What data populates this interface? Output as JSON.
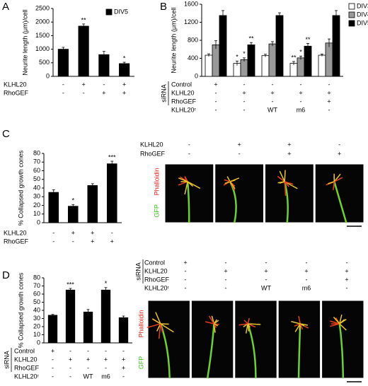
{
  "panels": [
    "A",
    "B",
    "C",
    "D"
  ],
  "chart_data": [
    {
      "type": "bar",
      "ylabel": "Neurite length (μm)/cell",
      "ylim": [
        0,
        2500
      ],
      "yticks": [
        0,
        500,
        1000,
        1500,
        2000,
        2500
      ],
      "series": [
        {
          "name": "DIV5",
          "color": "#000000",
          "values": [
            1000,
            1850,
            800,
            470
          ],
          "errors": [
            70,
            80,
            120,
            50
          ],
          "annotations": [
            null,
            "**",
            null,
            "*"
          ]
        }
      ],
      "conditions": [
        {
          "label": "KLHL20",
          "values": [
            "-",
            "+",
            "-",
            "+"
          ]
        },
        {
          "label": "RhoGEF",
          "values": [
            "-",
            "-",
            "+",
            "+"
          ]
        }
      ]
    },
    {
      "type": "bar",
      "ylabel": "Neurite length (μm)/cell",
      "ylim": [
        0,
        1600
      ],
      "yticks": [
        0,
        400,
        800,
        1200,
        1600
      ],
      "series": [
        {
          "name": "DIV3",
          "color": "#ffffff",
          "values": [
            470,
            290,
            460,
            290,
            470
          ],
          "errors": [
            30,
            50,
            30,
            40,
            25
          ],
          "annotations": [
            null,
            "*",
            null,
            "**",
            null
          ]
        },
        {
          "name": "DIV4",
          "color": "#999999",
          "values": [
            700,
            370,
            720,
            410,
            740
          ],
          "errors": [
            90,
            40,
            50,
            40,
            90
          ],
          "annotations": [
            null,
            "*",
            null,
            "*",
            null
          ]
        },
        {
          "name": "DIV5",
          "color": "#000000",
          "values": [
            1350,
            700,
            1350,
            670,
            1350
          ],
          "errors": [
            110,
            50,
            60,
            60,
            110
          ],
          "annotations": [
            null,
            "**",
            null,
            "**",
            null
          ]
        }
      ],
      "condition_group": "siRNA",
      "conditions": [
        {
          "label": "Control",
          "values": [
            "+",
            "-",
            "-",
            "-",
            "-"
          ]
        },
        {
          "label": "KLHL20",
          "values": [
            "-",
            "+",
            "+",
            "+",
            "+"
          ]
        },
        {
          "label": "RhoGEF",
          "values": [
            "-",
            "-",
            "-",
            "-",
            "+"
          ]
        },
        {
          "label": "KLHL20ʳ",
          "values": [
            "-",
            "-",
            "WT",
            "m6",
            "-"
          ]
        }
      ]
    },
    {
      "type": "bar",
      "ylabel": "% Collapsed growth cones",
      "ylim": [
        0,
        80
      ],
      "yticks": [
        0,
        10,
        20,
        30,
        40,
        50,
        60,
        70,
        80
      ],
      "series": [
        {
          "color": "#000000",
          "values": [
            35,
            19,
            43,
            68
          ],
          "errors": [
            3,
            2,
            2,
            3
          ],
          "annotations": [
            null,
            "*",
            null,
            "***"
          ]
        }
      ],
      "conditions": [
        {
          "label": "KLHL20",
          "values": [
            "-",
            "+",
            "+",
            "-"
          ]
        },
        {
          "label": "RhoGEF",
          "values": [
            "-",
            "-",
            "+",
            "+"
          ]
        }
      ]
    },
    {
      "type": "bar",
      "ylabel": "% Collapsed growth cones",
      "ylim": [
        0,
        80
      ],
      "yticks": [
        0,
        10,
        20,
        30,
        40,
        50,
        60,
        70,
        80
      ],
      "series": [
        {
          "color": "#000000",
          "values": [
            34,
            65,
            38,
            65,
            31
          ],
          "errors": [
            1,
            2,
            3,
            3,
            2
          ],
          "annotations": [
            null,
            "***",
            null,
            "*",
            null
          ]
        }
      ],
      "condition_group": "siRNA",
      "conditions": [
        {
          "label": "Control",
          "values": [
            "+",
            "-",
            "-",
            "-",
            "-"
          ]
        },
        {
          "label": "KLHL20",
          "values": [
            "-",
            "+",
            "+",
            "+",
            "+"
          ]
        },
        {
          "label": "RhoGEF",
          "values": [
            "-",
            "-",
            "-",
            "-",
            "+"
          ]
        },
        {
          "label": "KLHL20ʳ",
          "values": [
            "-",
            "-",
            "WT",
            "m6",
            "-"
          ]
        }
      ]
    }
  ],
  "micrographs": [
    {
      "channels": [
        "Phalloidin",
        "GFP"
      ],
      "conditions": [
        {
          "label": "KLHL20",
          "values": [
            "-",
            "+",
            "+",
            "-"
          ]
        },
        {
          "label": "RhoGEF",
          "values": [
            "-",
            "-",
            "+",
            "+"
          ]
        }
      ]
    },
    {
      "channels": [
        "Phalloidin",
        "GFP"
      ],
      "condition_group": "siRNA",
      "conditions": [
        {
          "label": "Control",
          "values": [
            "+",
            "-",
            "-",
            "-",
            "-"
          ]
        },
        {
          "label": "KLHL20",
          "values": [
            "-",
            "+",
            "+",
            "+",
            "+"
          ]
        },
        {
          "label": "RhoGEF",
          "values": [
            "-",
            "-",
            "-",
            "-",
            "+"
          ]
        },
        {
          "label": "KLHL20ʳ",
          "values": [
            "-",
            "-",
            "WT",
            "m6",
            "-"
          ]
        }
      ]
    }
  ]
}
